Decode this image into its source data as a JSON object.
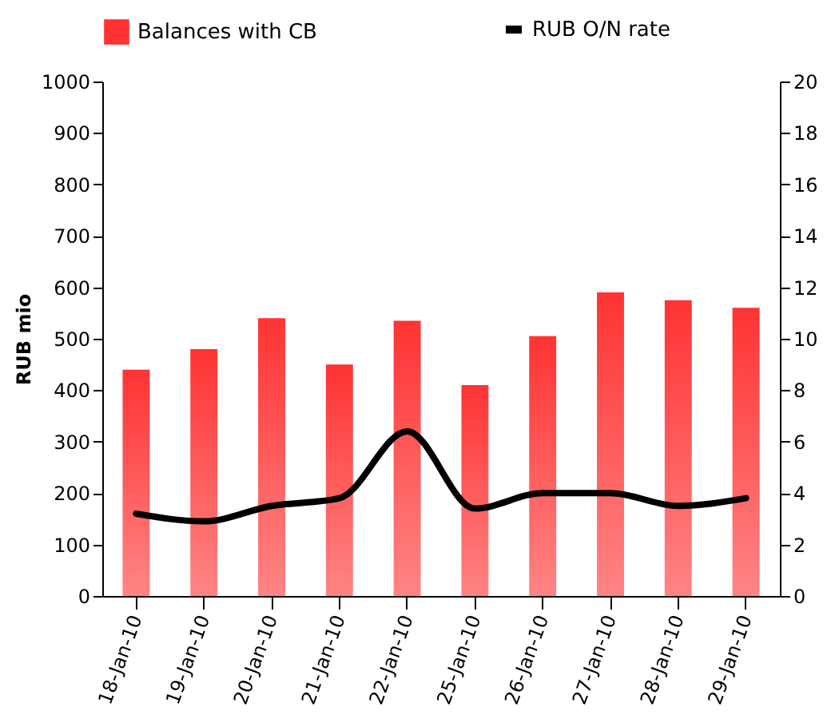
{
  "chart_data": {
    "type": "bar",
    "ylabel": "RUB mio",
    "categories": [
      "18-Jan-10",
      "19-Jan-10",
      "20-Jan-10",
      "21-Jan-10",
      "22-Jan-10",
      "25-Jan-10",
      "26-Jan-10",
      "27-Jan-10",
      "28-Jan-10",
      "29-Jan-10"
    ],
    "series": [
      {
        "name": "Balances with CB",
        "color": "#ff3333",
        "values": [
          440,
          480,
          540,
          450,
          535,
          410,
          505,
          590,
          575,
          560
        ]
      },
      {
        "name": "RUB O/N rate",
        "type": "line",
        "axis": "y2",
        "color": "#000000",
        "values": [
          3.2,
          2.9,
          3.5,
          3.8,
          6.4,
          3.4,
          4.0,
          4.0,
          3.5,
          3.8
        ]
      }
    ],
    "ylim": [
      0,
      1000
    ],
    "yticks": [
      0,
      100,
      200,
      300,
      400,
      500,
      600,
      700,
      800,
      900,
      1000
    ],
    "y2lim": [
      0,
      20
    ],
    "y2ticks": [
      0,
      2,
      4,
      6,
      8,
      10,
      12,
      14,
      16,
      18,
      20
    ],
    "legend": "top",
    "grid": false
  }
}
